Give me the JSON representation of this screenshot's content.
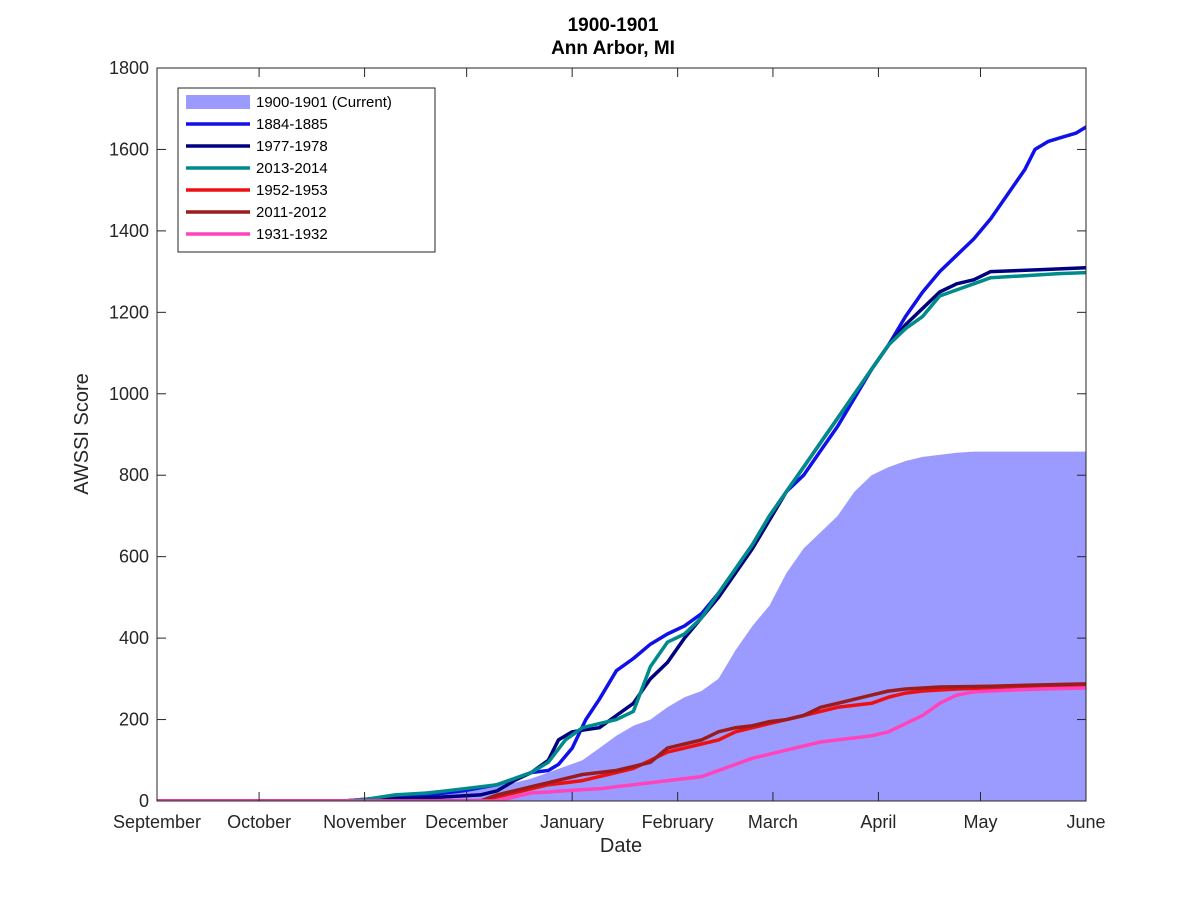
{
  "chart_data": {
    "type": "line",
    "title": "1900-1901",
    "subtitle": "Ann Arbor, MI",
    "xlabel": "Date",
    "ylabel": "AWSSI Score",
    "ylim": [
      0,
      1800
    ],
    "yticks": [
      0,
      200,
      400,
      600,
      800,
      1000,
      1200,
      1400,
      1600,
      1800
    ],
    "xticks": [
      {
        "label": "September",
        "day": 0
      },
      {
        "label": "October",
        "day": 30
      },
      {
        "label": "November",
        "day": 61
      },
      {
        "label": "December",
        "day": 91
      },
      {
        "label": "January",
        "day": 122
      },
      {
        "label": "February",
        "day": 153
      },
      {
        "label": "March",
        "day": 181
      },
      {
        "label": "April",
        "day": 212
      },
      {
        "label": "May",
        "day": 242
      },
      {
        "label": "June",
        "day": 273
      }
    ],
    "xlim": [
      0,
      273
    ],
    "grid": false,
    "legend_position": "top-left",
    "series": [
      {
        "name": "1900-1901 (Current)",
        "kind": "area",
        "color": "#9b9bff",
        "points": [
          [
            0,
            0
          ],
          [
            55,
            0
          ],
          [
            62,
            5
          ],
          [
            68,
            12
          ],
          [
            75,
            18
          ],
          [
            80,
            25
          ],
          [
            88,
            30
          ],
          [
            95,
            35
          ],
          [
            100,
            38
          ],
          [
            105,
            45
          ],
          [
            110,
            55
          ],
          [
            115,
            70
          ],
          [
            120,
            85
          ],
          [
            125,
            100
          ],
          [
            130,
            130
          ],
          [
            135,
            160
          ],
          [
            140,
            185
          ],
          [
            145,
            200
          ],
          [
            150,
            230
          ],
          [
            155,
            255
          ],
          [
            160,
            270
          ],
          [
            165,
            300
          ],
          [
            170,
            370
          ],
          [
            175,
            430
          ],
          [
            180,
            480
          ],
          [
            185,
            560
          ],
          [
            190,
            620
          ],
          [
            195,
            660
          ],
          [
            200,
            700
          ],
          [
            205,
            760
          ],
          [
            210,
            800
          ],
          [
            215,
            820
          ],
          [
            220,
            835
          ],
          [
            225,
            845
          ],
          [
            235,
            855
          ],
          [
            240,
            858
          ],
          [
            273,
            858
          ]
        ]
      },
      {
        "name": "1884-1885",
        "kind": "line",
        "color": "#1010e8",
        "points": [
          [
            0,
            0
          ],
          [
            55,
            0
          ],
          [
            62,
            5
          ],
          [
            75,
            10
          ],
          [
            90,
            25
          ],
          [
            100,
            40
          ],
          [
            105,
            55
          ],
          [
            110,
            70
          ],
          [
            115,
            75
          ],
          [
            118,
            90
          ],
          [
            122,
            130
          ],
          [
            126,
            200
          ],
          [
            130,
            250
          ],
          [
            135,
            320
          ],
          [
            140,
            350
          ],
          [
            145,
            385
          ],
          [
            150,
            410
          ],
          [
            155,
            430
          ],
          [
            160,
            460
          ],
          [
            165,
            510
          ],
          [
            170,
            570
          ],
          [
            175,
            630
          ],
          [
            180,
            700
          ],
          [
            185,
            760
          ],
          [
            190,
            800
          ],
          [
            195,
            860
          ],
          [
            200,
            920
          ],
          [
            205,
            990
          ],
          [
            210,
            1060
          ],
          [
            215,
            1120
          ],
          [
            220,
            1190
          ],
          [
            225,
            1250
          ],
          [
            230,
            1300
          ],
          [
            235,
            1340
          ],
          [
            240,
            1380
          ],
          [
            245,
            1430
          ],
          [
            250,
            1490
          ],
          [
            255,
            1550
          ],
          [
            258,
            1600
          ],
          [
            262,
            1620
          ],
          [
            266,
            1630
          ],
          [
            270,
            1640
          ],
          [
            274,
            1660
          ],
          [
            275,
            1665
          ],
          [
            300,
            1665
          ]
        ]
      },
      {
        "name": "1977-1978",
        "kind": "line",
        "color": "#000080",
        "points": [
          [
            0,
            0
          ],
          [
            55,
            0
          ],
          [
            62,
            3
          ],
          [
            80,
            8
          ],
          [
            95,
            15
          ],
          [
            100,
            25
          ],
          [
            105,
            50
          ],
          [
            110,
            70
          ],
          [
            115,
            100
          ],
          [
            118,
            150
          ],
          [
            122,
            170
          ],
          [
            126,
            175
          ],
          [
            130,
            180
          ],
          [
            135,
            210
          ],
          [
            140,
            240
          ],
          [
            145,
            300
          ],
          [
            150,
            340
          ],
          [
            155,
            400
          ],
          [
            160,
            450
          ],
          [
            165,
            500
          ],
          [
            170,
            560
          ],
          [
            175,
            620
          ],
          [
            180,
            690
          ],
          [
            185,
            760
          ],
          [
            190,
            820
          ],
          [
            195,
            880
          ],
          [
            200,
            940
          ],
          [
            205,
            1000
          ],
          [
            210,
            1060
          ],
          [
            215,
            1120
          ],
          [
            220,
            1170
          ],
          [
            225,
            1210
          ],
          [
            230,
            1250
          ],
          [
            235,
            1270
          ],
          [
            240,
            1280
          ],
          [
            245,
            1300
          ],
          [
            260,
            1305
          ],
          [
            275,
            1310
          ],
          [
            300,
            1310
          ]
        ]
      },
      {
        "name": "2013-2014",
        "kind": "line",
        "color": "#008b8b",
        "points": [
          [
            0,
            0
          ],
          [
            55,
            0
          ],
          [
            62,
            5
          ],
          [
            70,
            15
          ],
          [
            80,
            20
          ],
          [
            90,
            30
          ],
          [
            100,
            40
          ],
          [
            105,
            55
          ],
          [
            110,
            70
          ],
          [
            115,
            95
          ],
          [
            120,
            150
          ],
          [
            125,
            180
          ],
          [
            130,
            190
          ],
          [
            135,
            200
          ],
          [
            140,
            220
          ],
          [
            145,
            330
          ],
          [
            150,
            390
          ],
          [
            155,
            410
          ],
          [
            160,
            450
          ],
          [
            165,
            510
          ],
          [
            170,
            570
          ],
          [
            175,
            630
          ],
          [
            180,
            700
          ],
          [
            185,
            760
          ],
          [
            190,
            820
          ],
          [
            195,
            880
          ],
          [
            200,
            940
          ],
          [
            205,
            1000
          ],
          [
            210,
            1060
          ],
          [
            215,
            1120
          ],
          [
            220,
            1160
          ],
          [
            225,
            1190
          ],
          [
            230,
            1240
          ],
          [
            235,
            1255
          ],
          [
            240,
            1270
          ],
          [
            245,
            1285
          ],
          [
            255,
            1290
          ],
          [
            265,
            1295
          ],
          [
            275,
            1298
          ],
          [
            300,
            1298
          ]
        ]
      },
      {
        "name": "1952-1953",
        "kind": "line",
        "color": "#ee1010",
        "points": [
          [
            0,
            0
          ],
          [
            95,
            0
          ],
          [
            100,
            10
          ],
          [
            105,
            20
          ],
          [
            110,
            30
          ],
          [
            115,
            40
          ],
          [
            120,
            45
          ],
          [
            125,
            50
          ],
          [
            130,
            60
          ],
          [
            135,
            70
          ],
          [
            140,
            80
          ],
          [
            145,
            100
          ],
          [
            150,
            120
          ],
          [
            155,
            130
          ],
          [
            160,
            140
          ],
          [
            165,
            150
          ],
          [
            170,
            170
          ],
          [
            175,
            180
          ],
          [
            180,
            190
          ],
          [
            185,
            200
          ],
          [
            190,
            210
          ],
          [
            195,
            220
          ],
          [
            200,
            230
          ],
          [
            205,
            235
          ],
          [
            210,
            240
          ],
          [
            215,
            255
          ],
          [
            220,
            265
          ],
          [
            225,
            270
          ],
          [
            235,
            275
          ],
          [
            245,
            278
          ],
          [
            260,
            283
          ],
          [
            275,
            285
          ],
          [
            300,
            285
          ]
        ]
      },
      {
        "name": "2011-2012",
        "kind": "line",
        "color": "#9b1c1c",
        "points": [
          [
            0,
            0
          ],
          [
            95,
            0
          ],
          [
            100,
            15
          ],
          [
            105,
            25
          ],
          [
            110,
            35
          ],
          [
            115,
            45
          ],
          [
            120,
            55
          ],
          [
            125,
            65
          ],
          [
            130,
            70
          ],
          [
            135,
            75
          ],
          [
            140,
            85
          ],
          [
            145,
            95
          ],
          [
            150,
            130
          ],
          [
            155,
            140
          ],
          [
            160,
            150
          ],
          [
            165,
            170
          ],
          [
            170,
            180
          ],
          [
            175,
            185
          ],
          [
            180,
            195
          ],
          [
            185,
            200
          ],
          [
            190,
            210
          ],
          [
            195,
            230
          ],
          [
            200,
            240
          ],
          [
            205,
            250
          ],
          [
            210,
            260
          ],
          [
            215,
            270
          ],
          [
            220,
            275
          ],
          [
            230,
            280
          ],
          [
            245,
            282
          ],
          [
            260,
            285
          ],
          [
            275,
            288
          ],
          [
            300,
            288
          ]
        ]
      },
      {
        "name": "1931-1932",
        "kind": "line",
        "color": "#ff44bb",
        "points": [
          [
            0,
            0
          ],
          [
            100,
            0
          ],
          [
            105,
            10
          ],
          [
            110,
            20
          ],
          [
            115,
            22
          ],
          [
            120,
            25
          ],
          [
            125,
            28
          ],
          [
            130,
            30
          ],
          [
            135,
            35
          ],
          [
            140,
            40
          ],
          [
            145,
            45
          ],
          [
            150,
            50
          ],
          [
            155,
            55
          ],
          [
            160,
            60
          ],
          [
            165,
            75
          ],
          [
            170,
            90
          ],
          [
            175,
            105
          ],
          [
            180,
            115
          ],
          [
            185,
            125
          ],
          [
            190,
            135
          ],
          [
            195,
            145
          ],
          [
            200,
            150
          ],
          [
            205,
            155
          ],
          [
            210,
            160
          ],
          [
            215,
            170
          ],
          [
            220,
            190
          ],
          [
            225,
            210
          ],
          [
            230,
            240
          ],
          [
            235,
            260
          ],
          [
            240,
            268
          ],
          [
            250,
            272
          ],
          [
            260,
            275
          ],
          [
            275,
            278
          ],
          [
            300,
            278
          ]
        ]
      }
    ]
  }
}
